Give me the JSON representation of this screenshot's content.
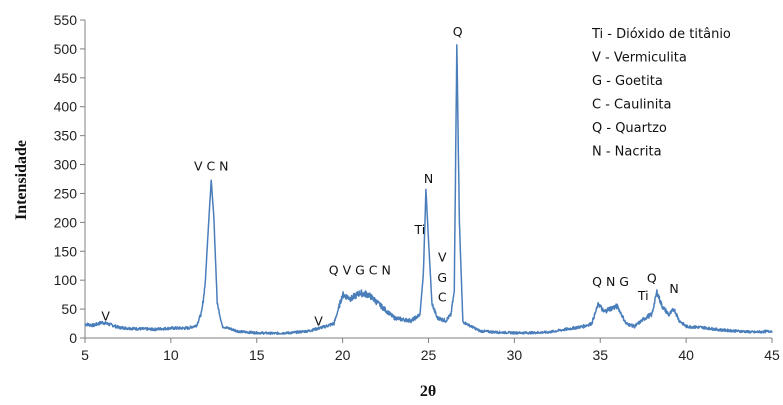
{
  "chart_data": {
    "type": "line",
    "xlabel": "2θ",
    "ylabel": "Intensidade",
    "xlim": [
      5,
      45
    ],
    "ylim": [
      0,
      550
    ],
    "x_ticks": [
      5,
      10,
      15,
      20,
      25,
      30,
      35,
      40,
      45
    ],
    "y_ticks": [
      0,
      50,
      100,
      150,
      200,
      250,
      300,
      350,
      400,
      450,
      500,
      550
    ],
    "grid": false,
    "legend_position": "top-right",
    "line_color": "#4a7ebb",
    "legend": [
      "Ti - Dióxido de titânio",
      "V - Vermiculita",
      "G - Goetita",
      "C - Caulinita",
      "Q - Quartzo",
      "N - Nacrita"
    ],
    "series": [
      {
        "points": [
          [
            5.0,
            24
          ],
          [
            5.5,
            22
          ],
          [
            6.0,
            27
          ],
          [
            6.5,
            23
          ],
          [
            7.0,
            18
          ],
          [
            8.0,
            16
          ],
          [
            9.0,
            15
          ],
          [
            10.0,
            17
          ],
          [
            11.0,
            17
          ],
          [
            11.5,
            22
          ],
          [
            11.8,
            45
          ],
          [
            12.0,
            95
          ],
          [
            12.2,
            200
          ],
          [
            12.35,
            273
          ],
          [
            12.5,
            210
          ],
          [
            12.7,
            60
          ],
          [
            13.0,
            20
          ],
          [
            14.0,
            11
          ],
          [
            15.0,
            9
          ],
          [
            16.0,
            8
          ],
          [
            17.0,
            9
          ],
          [
            18.0,
            12
          ],
          [
            18.5,
            16
          ],
          [
            19.0,
            20
          ],
          [
            19.5,
            25
          ],
          [
            19.8,
            55
          ],
          [
            20.0,
            75
          ],
          [
            20.5,
            68
          ],
          [
            21.0,
            78
          ],
          [
            21.5,
            75
          ],
          [
            22.0,
            62
          ],
          [
            22.5,
            48
          ],
          [
            23.0,
            35
          ],
          [
            23.5,
            32
          ],
          [
            24.0,
            30
          ],
          [
            24.5,
            40
          ],
          [
            24.7,
            110
          ],
          [
            24.85,
            257
          ],
          [
            25.0,
            170
          ],
          [
            25.2,
            60
          ],
          [
            25.5,
            35
          ],
          [
            26.0,
            30
          ],
          [
            26.3,
            40
          ],
          [
            26.5,
            80
          ],
          [
            26.65,
            507
          ],
          [
            26.8,
            200
          ],
          [
            27.0,
            28
          ],
          [
            28.0,
            12
          ],
          [
            29.0,
            10
          ],
          [
            30.0,
            9
          ],
          [
            31.0,
            9
          ],
          [
            32.0,
            10
          ],
          [
            33.0,
            15
          ],
          [
            34.0,
            20
          ],
          [
            34.5,
            25
          ],
          [
            34.9,
            60
          ],
          [
            35.2,
            45
          ],
          [
            35.5,
            50
          ],
          [
            36.0,
            55
          ],
          [
            36.5,
            25
          ],
          [
            37.0,
            20
          ],
          [
            37.5,
            32
          ],
          [
            37.8,
            38
          ],
          [
            38.0,
            40
          ],
          [
            38.3,
            80
          ],
          [
            38.6,
            55
          ],
          [
            39.0,
            40
          ],
          [
            39.3,
            50
          ],
          [
            39.6,
            30
          ],
          [
            40.0,
            20
          ],
          [
            41.0,
            18
          ],
          [
            42.0,
            14
          ],
          [
            43.0,
            12
          ],
          [
            44.0,
            10
          ],
          [
            45.0,
            12
          ]
        ]
      }
    ],
    "peak_labels": [
      {
        "text": "V",
        "x": 6.2,
        "y": 30
      },
      {
        "text": "V C N",
        "x": 12.35,
        "y": 290
      },
      {
        "text": "V",
        "x": 18.6,
        "y": 22
      },
      {
        "text": "Q V G C N",
        "x": 21.0,
        "y": 110
      },
      {
        "text": "N",
        "x": 25.0,
        "y": 268
      },
      {
        "text": "Ti",
        "x": 24.5,
        "y": 180
      },
      {
        "text": "V",
        "x": 25.8,
        "y": 132
      },
      {
        "text": "G",
        "x": 25.8,
        "y": 97
      },
      {
        "text": "C",
        "x": 25.8,
        "y": 63
      },
      {
        "text": "Q",
        "x": 26.7,
        "y": 522
      },
      {
        "text": "Q N G",
        "x": 35.6,
        "y": 90
      },
      {
        "text": "Ti",
        "x": 37.5,
        "y": 66
      },
      {
        "text": "Q",
        "x": 38.0,
        "y": 96
      },
      {
        "text": "N",
        "x": 39.3,
        "y": 78
      }
    ]
  }
}
